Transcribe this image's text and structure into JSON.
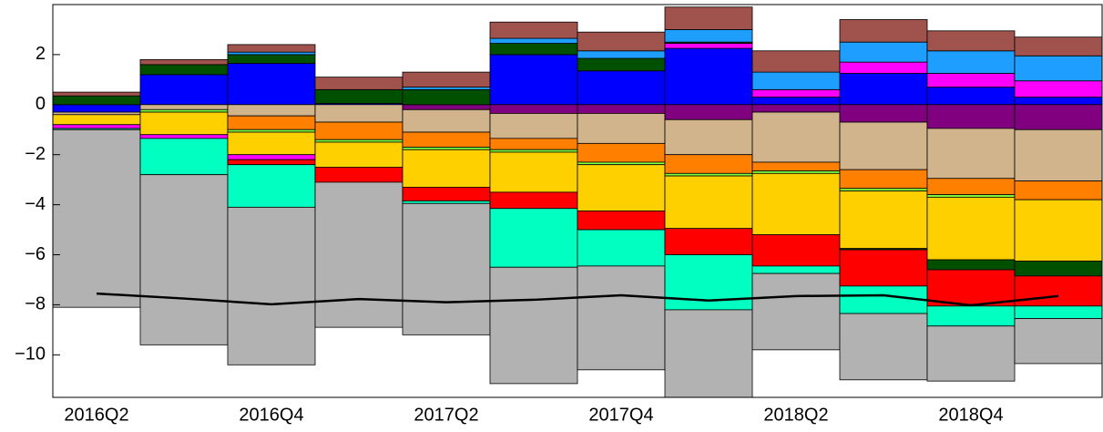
{
  "chart_data": {
    "type": "bar",
    "stacked": true,
    "categories": [
      "2016Q2",
      null,
      "2016Q4",
      null,
      "2017Q2",
      null,
      "2017Q4",
      null,
      "2018Q2",
      null,
      "2018Q4",
      null
    ],
    "ylim": [
      -11.7,
      4.0
    ],
    "yticks": [
      {
        "value": -10,
        "label": "−10"
      },
      {
        "value": -8,
        "label": "−8"
      },
      {
        "value": -6,
        "label": "−6"
      },
      {
        "value": -4,
        "label": "−4"
      },
      {
        "value": -2,
        "label": "−2"
      },
      0,
      2
    ],
    "series": [
      {
        "color": "#0000ff",
        "values": [
          -0.3,
          1.2,
          1.65,
          0.05,
          0,
          2.0,
          1.35,
          2.25,
          0.3,
          1.25,
          0.7,
          0.3
        ]
      },
      {
        "color": "#800080",
        "values": [
          0,
          0,
          0,
          0,
          -0.2,
          -0.35,
          -0.35,
          -0.6,
          -0.3,
          -0.7,
          -0.95,
          -1.0
        ]
      },
      {
        "color": "#d2b48c",
        "values": [
          -0.1,
          -0.2,
          -0.45,
          -0.7,
          -0.9,
          -1.0,
          -1.2,
          -1.4,
          -2.0,
          -1.9,
          -2.0,
          -2.05
        ]
      },
      {
        "color": "#ff8000",
        "values": [
          0,
          0,
          -0.55,
          -0.7,
          -0.6,
          -0.45,
          -0.75,
          -0.75,
          -0.35,
          -0.75,
          -0.65,
          -0.75
        ]
      },
      {
        "color": "#80ff40",
        "values": [
          0,
          -0.1,
          -0.1,
          -0.1,
          -0.1,
          -0.1,
          -0.1,
          -0.1,
          -0.1,
          -0.1,
          -0.1,
          0
        ]
      },
      {
        "color": "#ffd000",
        "values": [
          -0.4,
          -0.9,
          -0.9,
          -1.0,
          -1.5,
          -1.6,
          -1.85,
          -2.1,
          -2.45,
          -2.3,
          -2.5,
          -2.45
        ]
      },
      {
        "color": "#ff00ff",
        "values": [
          -0.15,
          -0.15,
          -0.2,
          0,
          0,
          0,
          0,
          0.2,
          0.3,
          0.45,
          0.55,
          0.65
        ]
      },
      {
        "color": "#005000",
        "values": [
          0.35,
          0.4,
          0.35,
          0.55,
          0.6,
          0.45,
          0.5,
          0.05,
          0,
          -0.05,
          -0.4,
          -0.6
        ]
      },
      {
        "color": "#ff0000",
        "values": [
          0,
          0,
          -0.2,
          -0.6,
          -0.55,
          -0.65,
          -0.75,
          -1.05,
          -1.25,
          -1.45,
          -1.45,
          -1.2
        ]
      },
      {
        "color": "#00ffc0",
        "values": [
          -0.05,
          -1.45,
          -1.7,
          0,
          -0.1,
          -2.35,
          -1.45,
          -2.2,
          -0.3,
          -1.1,
          -0.8,
          -0.5
        ]
      },
      {
        "color": "#b2b2b2",
        "values": [
          -7.1,
          -6.8,
          -6.3,
          -5.8,
          -5.25,
          -4.65,
          -4.15,
          -3.5,
          -3.05,
          -2.65,
          -2.2,
          -1.8
        ]
      },
      {
        "color": "#1e9fff",
        "values": [
          0,
          0,
          0.1,
          0,
          0.1,
          0.2,
          0.3,
          0.5,
          0.7,
          0.8,
          0.9,
          1.0
        ]
      },
      {
        "color": "#a0524d",
        "values": [
          0.15,
          0.2,
          0.3,
          0.5,
          0.6,
          0.65,
          0.75,
          0.9,
          0.85,
          0.9,
          0.8,
          0.75
        ]
      }
    ],
    "line": {
      "color": "#000000",
      "values": [
        -7.55,
        -7.75,
        -7.98,
        -7.77,
        -7.9,
        -7.8,
        -7.62,
        -7.83,
        -7.65,
        -7.62,
        -8.02,
        -7.65
      ]
    }
  }
}
